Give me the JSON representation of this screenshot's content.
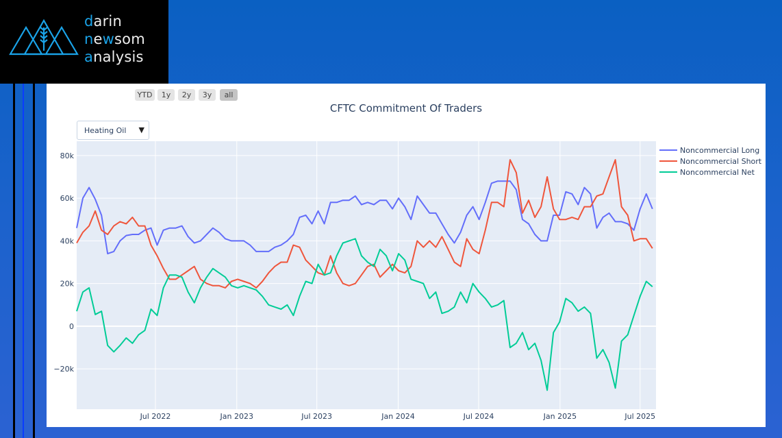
{
  "logo": {
    "line1": "darin",
    "line2": "newsom",
    "line3": "analysis",
    "icon": "mountains-wheat-logo"
  },
  "range_buttons": [
    "YTD",
    "1y",
    "2y",
    "3y",
    "all"
  ],
  "active_range": "all",
  "dropdown": {
    "selected": "Heating Oil",
    "icon": "triangle-down-icon"
  },
  "colors": {
    "long": "#636efa",
    "short": "#ef553b",
    "net": "#00cc96",
    "plot_bg": "#e5ecf6"
  },
  "chart_data": {
    "type": "line",
    "title": "CFTC Commitment Of Traders",
    "xlabel": "",
    "ylabel": "",
    "xlim": [
      "2022-01-04",
      "2025-08-06"
    ],
    "ylim": [
      -38900,
      86700
    ],
    "x_ticks": [
      {
        "date": "2022-07-01",
        "label": "Jul 2022"
      },
      {
        "date": "2023-01-01",
        "label": "Jan 2023"
      },
      {
        "date": "2023-07-01",
        "label": "Jul 2023"
      },
      {
        "date": "2024-01-01",
        "label": "Jan 2024"
      },
      {
        "date": "2024-07-01",
        "label": "Jul 2024"
      },
      {
        "date": "2025-01-01",
        "label": "Jan 2025"
      },
      {
        "date": "2025-07-01",
        "label": "Jul 2025"
      }
    ],
    "y_ticks": [
      {
        "value": -20000,
        "label": "−20k"
      },
      {
        "value": 0,
        "label": "0"
      },
      {
        "value": 20000,
        "label": "20k"
      },
      {
        "value": 40000,
        "label": "40k"
      },
      {
        "value": 60000,
        "label": "60k"
      },
      {
        "value": 80000,
        "label": "80k"
      }
    ],
    "grid": true,
    "legend_position": "top-right",
    "x": [
      "2022-01-04",
      "2022-01-18",
      "2022-02-01",
      "2022-02-15",
      "2022-03-01",
      "2022-03-15",
      "2022-03-29",
      "2022-04-12",
      "2022-04-26",
      "2022-05-10",
      "2022-05-24",
      "2022-06-07",
      "2022-06-21",
      "2022-07-05",
      "2022-07-19",
      "2022-08-02",
      "2022-08-16",
      "2022-08-30",
      "2022-09-13",
      "2022-09-27",
      "2022-10-11",
      "2022-10-25",
      "2022-11-08",
      "2022-11-22",
      "2022-12-06",
      "2022-12-20",
      "2023-01-03",
      "2023-01-17",
      "2023-01-31",
      "2023-02-14",
      "2023-02-28",
      "2023-03-14",
      "2023-03-28",
      "2023-04-11",
      "2023-04-25",
      "2023-05-09",
      "2023-05-23",
      "2023-06-06",
      "2023-06-20",
      "2023-07-04",
      "2023-07-18",
      "2023-08-01",
      "2023-08-15",
      "2023-08-29",
      "2023-09-12",
      "2023-09-26",
      "2023-10-10",
      "2023-10-24",
      "2023-11-07",
      "2023-11-21",
      "2023-12-05",
      "2023-12-19",
      "2024-01-02",
      "2024-01-16",
      "2024-01-30",
      "2024-02-13",
      "2024-02-27",
      "2024-03-12",
      "2024-03-26",
      "2024-04-09",
      "2024-04-23",
      "2024-05-07",
      "2024-05-21",
      "2024-06-04",
      "2024-06-18",
      "2024-07-02",
      "2024-07-16",
      "2024-07-30",
      "2024-08-13",
      "2024-08-27",
      "2024-09-10",
      "2024-09-24",
      "2024-10-08",
      "2024-10-22",
      "2024-11-05",
      "2024-11-19",
      "2024-12-03",
      "2024-12-17",
      "2024-12-31",
      "2025-01-14",
      "2025-01-28",
      "2025-02-11",
      "2025-02-25",
      "2025-03-11",
      "2025-03-25",
      "2025-04-08",
      "2025-04-22",
      "2025-05-06",
      "2025-05-20",
      "2025-06-03",
      "2025-06-17",
      "2025-07-01",
      "2025-07-15",
      "2025-07-29"
    ],
    "series": [
      {
        "name": "Noncommercial Long",
        "color": "#636efa",
        "values": [
          46000,
          60000,
          65000,
          59500,
          52000,
          34000,
          35000,
          40000,
          42500,
          43000,
          43000,
          45000,
          46000,
          38000,
          45000,
          46000,
          46000,
          47000,
          42000,
          39000,
          40000,
          43000,
          46000,
          44000,
          41000,
          40000,
          40000,
          40000,
          38000,
          35000,
          35000,
          35000,
          37000,
          38000,
          40000,
          43000,
          51000,
          52000,
          48000,
          54000,
          48000,
          58000,
          58000,
          59000,
          59000,
          61000,
          57000,
          58000,
          57000,
          59000,
          59000,
          55000,
          60000,
          56000,
          50000,
          61000,
          57000,
          53000,
          53000,
          48000,
          43000,
          39000,
          44000,
          52000,
          56000,
          50000,
          58000,
          67000,
          68000,
          68000,
          68000,
          64000,
          50000,
          48000,
          43000,
          40000,
          40000,
          52000,
          52000,
          63000,
          62000,
          57000,
          65000,
          62000,
          46000,
          51000,
          53000,
          49000,
          49000,
          48000,
          45000,
          55000,
          62000,
          55000
        ]
      },
      {
        "name": "Noncommercial Short",
        "color": "#ef553b",
        "values": [
          39000,
          44000,
          47000,
          54000,
          45000,
          43000,
          47000,
          49000,
          48000,
          51000,
          47000,
          47000,
          38000,
          33000,
          27000,
          22000,
          22000,
          24000,
          26000,
          28000,
          22000,
          20000,
          19000,
          19000,
          18000,
          21000,
          22000,
          21000,
          20000,
          18000,
          21000,
          25000,
          28000,
          30000,
          30000,
          38000,
          37000,
          31000,
          28000,
          25000,
          24000,
          33000,
          25000,
          20000,
          19000,
          20000,
          24000,
          28000,
          29000,
          23000,
          26000,
          29000,
          26000,
          25000,
          28000,
          40000,
          37000,
          40000,
          37000,
          42000,
          36000,
          30000,
          28000,
          41000,
          36000,
          34000,
          45000,
          58000,
          58000,
          56000,
          78000,
          72000,
          53000,
          59000,
          51000,
          56000,
          70000,
          55000,
          50000,
          50000,
          51000,
          50000,
          56000,
          56000,
          61000,
          62000,
          70000,
          78000,
          56000,
          52000,
          40000,
          41000,
          41000,
          36500
        ]
      },
      {
        "name": "Noncommercial Net",
        "color": "#00cc96",
        "values": [
          7000,
          16000,
          18000,
          5500,
          7000,
          -9000,
          -12000,
          -9000,
          -5500,
          -8000,
          -4000,
          -2000,
          8000,
          5000,
          18000,
          24000,
          24000,
          23000,
          16000,
          11000,
          18000,
          23000,
          27000,
          25000,
          23000,
          19000,
          18000,
          19000,
          18000,
          17000,
          14000,
          10000,
          9000,
          8000,
          10000,
          5000,
          14000,
          21000,
          20000,
          29000,
          24000,
          25000,
          33000,
          39000,
          40000,
          41000,
          33000,
          30000,
          28000,
          36000,
          33000,
          26000,
          34000,
          31000,
          22000,
          21000,
          20000,
          13000,
          16000,
          6000,
          7000,
          9000,
          16000,
          11000,
          20000,
          16000,
          13000,
          9000,
          10000,
          12000,
          -10000,
          -8000,
          -3000,
          -11000,
          -8000,
          -16000,
          -30000,
          -3000,
          2000,
          13000,
          11000,
          7000,
          9000,
          6000,
          -15000,
          -11000,
          -17000,
          -29000,
          -7000,
          -4000,
          5000,
          14000,
          21000,
          18500
        ]
      }
    ]
  }
}
